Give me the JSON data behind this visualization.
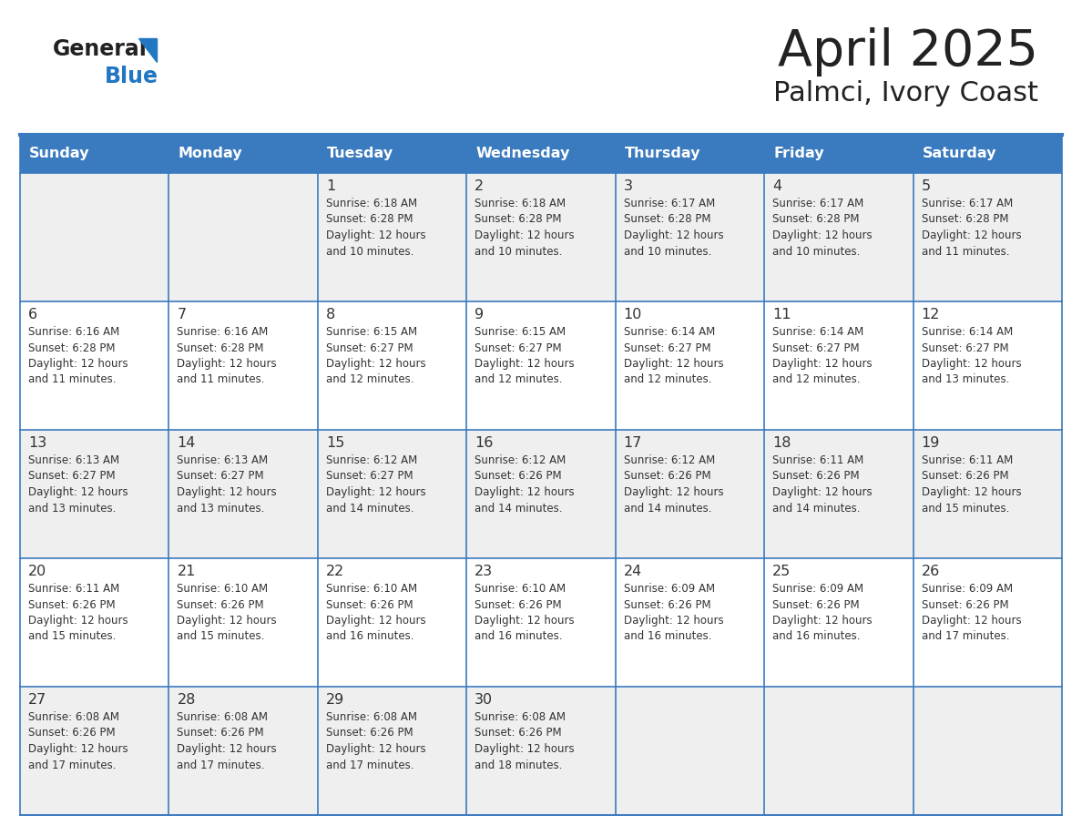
{
  "title": "April 2025",
  "subtitle": "Palmci, Ivory Coast",
  "days_of_week": [
    "Sunday",
    "Monday",
    "Tuesday",
    "Wednesday",
    "Thursday",
    "Friday",
    "Saturday"
  ],
  "header_bg": "#3a7abf",
  "header_text": "#ffffff",
  "cell_bg_gray": "#efefef",
  "cell_bg_white": "#ffffff",
  "border_color": "#3a7abf",
  "text_color": "#333333",
  "day_num_color": "#333333",
  "logo_general_color": "#222222",
  "logo_blue_color": "#2177c1",
  "calendar_data": [
    {
      "day": 1,
      "col": 2,
      "row": 0,
      "sunrise": "6:18 AM",
      "sunset": "6:28 PM",
      "daylight_suffix": "10 minutes."
    },
    {
      "day": 2,
      "col": 3,
      "row": 0,
      "sunrise": "6:18 AM",
      "sunset": "6:28 PM",
      "daylight_suffix": "10 minutes."
    },
    {
      "day": 3,
      "col": 4,
      "row": 0,
      "sunrise": "6:17 AM",
      "sunset": "6:28 PM",
      "daylight_suffix": "10 minutes."
    },
    {
      "day": 4,
      "col": 5,
      "row": 0,
      "sunrise": "6:17 AM",
      "sunset": "6:28 PM",
      "daylight_suffix": "10 minutes."
    },
    {
      "day": 5,
      "col": 6,
      "row": 0,
      "sunrise": "6:17 AM",
      "sunset": "6:28 PM",
      "daylight_suffix": "11 minutes."
    },
    {
      "day": 6,
      "col": 0,
      "row": 1,
      "sunrise": "6:16 AM",
      "sunset": "6:28 PM",
      "daylight_suffix": "11 minutes."
    },
    {
      "day": 7,
      "col": 1,
      "row": 1,
      "sunrise": "6:16 AM",
      "sunset": "6:28 PM",
      "daylight_suffix": "11 minutes."
    },
    {
      "day": 8,
      "col": 2,
      "row": 1,
      "sunrise": "6:15 AM",
      "sunset": "6:27 PM",
      "daylight_suffix": "12 minutes."
    },
    {
      "day": 9,
      "col": 3,
      "row": 1,
      "sunrise": "6:15 AM",
      "sunset": "6:27 PM",
      "daylight_suffix": "12 minutes."
    },
    {
      "day": 10,
      "col": 4,
      "row": 1,
      "sunrise": "6:14 AM",
      "sunset": "6:27 PM",
      "daylight_suffix": "12 minutes."
    },
    {
      "day": 11,
      "col": 5,
      "row": 1,
      "sunrise": "6:14 AM",
      "sunset": "6:27 PM",
      "daylight_suffix": "12 minutes."
    },
    {
      "day": 12,
      "col": 6,
      "row": 1,
      "sunrise": "6:14 AM",
      "sunset": "6:27 PM",
      "daylight_suffix": "13 minutes."
    },
    {
      "day": 13,
      "col": 0,
      "row": 2,
      "sunrise": "6:13 AM",
      "sunset": "6:27 PM",
      "daylight_suffix": "13 minutes."
    },
    {
      "day": 14,
      "col": 1,
      "row": 2,
      "sunrise": "6:13 AM",
      "sunset": "6:27 PM",
      "daylight_suffix": "13 minutes."
    },
    {
      "day": 15,
      "col": 2,
      "row": 2,
      "sunrise": "6:12 AM",
      "sunset": "6:27 PM",
      "daylight_suffix": "14 minutes."
    },
    {
      "day": 16,
      "col": 3,
      "row": 2,
      "sunrise": "6:12 AM",
      "sunset": "6:26 PM",
      "daylight_suffix": "14 minutes."
    },
    {
      "day": 17,
      "col": 4,
      "row": 2,
      "sunrise": "6:12 AM",
      "sunset": "6:26 PM",
      "daylight_suffix": "14 minutes."
    },
    {
      "day": 18,
      "col": 5,
      "row": 2,
      "sunrise": "6:11 AM",
      "sunset": "6:26 PM",
      "daylight_suffix": "14 minutes."
    },
    {
      "day": 19,
      "col": 6,
      "row": 2,
      "sunrise": "6:11 AM",
      "sunset": "6:26 PM",
      "daylight_suffix": "15 minutes."
    },
    {
      "day": 20,
      "col": 0,
      "row": 3,
      "sunrise": "6:11 AM",
      "sunset": "6:26 PM",
      "daylight_suffix": "15 minutes."
    },
    {
      "day": 21,
      "col": 1,
      "row": 3,
      "sunrise": "6:10 AM",
      "sunset": "6:26 PM",
      "daylight_suffix": "15 minutes."
    },
    {
      "day": 22,
      "col": 2,
      "row": 3,
      "sunrise": "6:10 AM",
      "sunset": "6:26 PM",
      "daylight_suffix": "16 minutes."
    },
    {
      "day": 23,
      "col": 3,
      "row": 3,
      "sunrise": "6:10 AM",
      "sunset": "6:26 PM",
      "daylight_suffix": "16 minutes."
    },
    {
      "day": 24,
      "col": 4,
      "row": 3,
      "sunrise": "6:09 AM",
      "sunset": "6:26 PM",
      "daylight_suffix": "16 minutes."
    },
    {
      "day": 25,
      "col": 5,
      "row": 3,
      "sunrise": "6:09 AM",
      "sunset": "6:26 PM",
      "daylight_suffix": "16 minutes."
    },
    {
      "day": 26,
      "col": 6,
      "row": 3,
      "sunrise": "6:09 AM",
      "sunset": "6:26 PM",
      "daylight_suffix": "17 minutes."
    },
    {
      "day": 27,
      "col": 0,
      "row": 4,
      "sunrise": "6:08 AM",
      "sunset": "6:26 PM",
      "daylight_suffix": "17 minutes."
    },
    {
      "day": 28,
      "col": 1,
      "row": 4,
      "sunrise": "6:08 AM",
      "sunset": "6:26 PM",
      "daylight_suffix": "17 minutes."
    },
    {
      "day": 29,
      "col": 2,
      "row": 4,
      "sunrise": "6:08 AM",
      "sunset": "6:26 PM",
      "daylight_suffix": "17 minutes."
    },
    {
      "day": 30,
      "col": 3,
      "row": 4,
      "sunrise": "6:08 AM",
      "sunset": "6:26 PM",
      "daylight_suffix": "18 minutes."
    }
  ]
}
